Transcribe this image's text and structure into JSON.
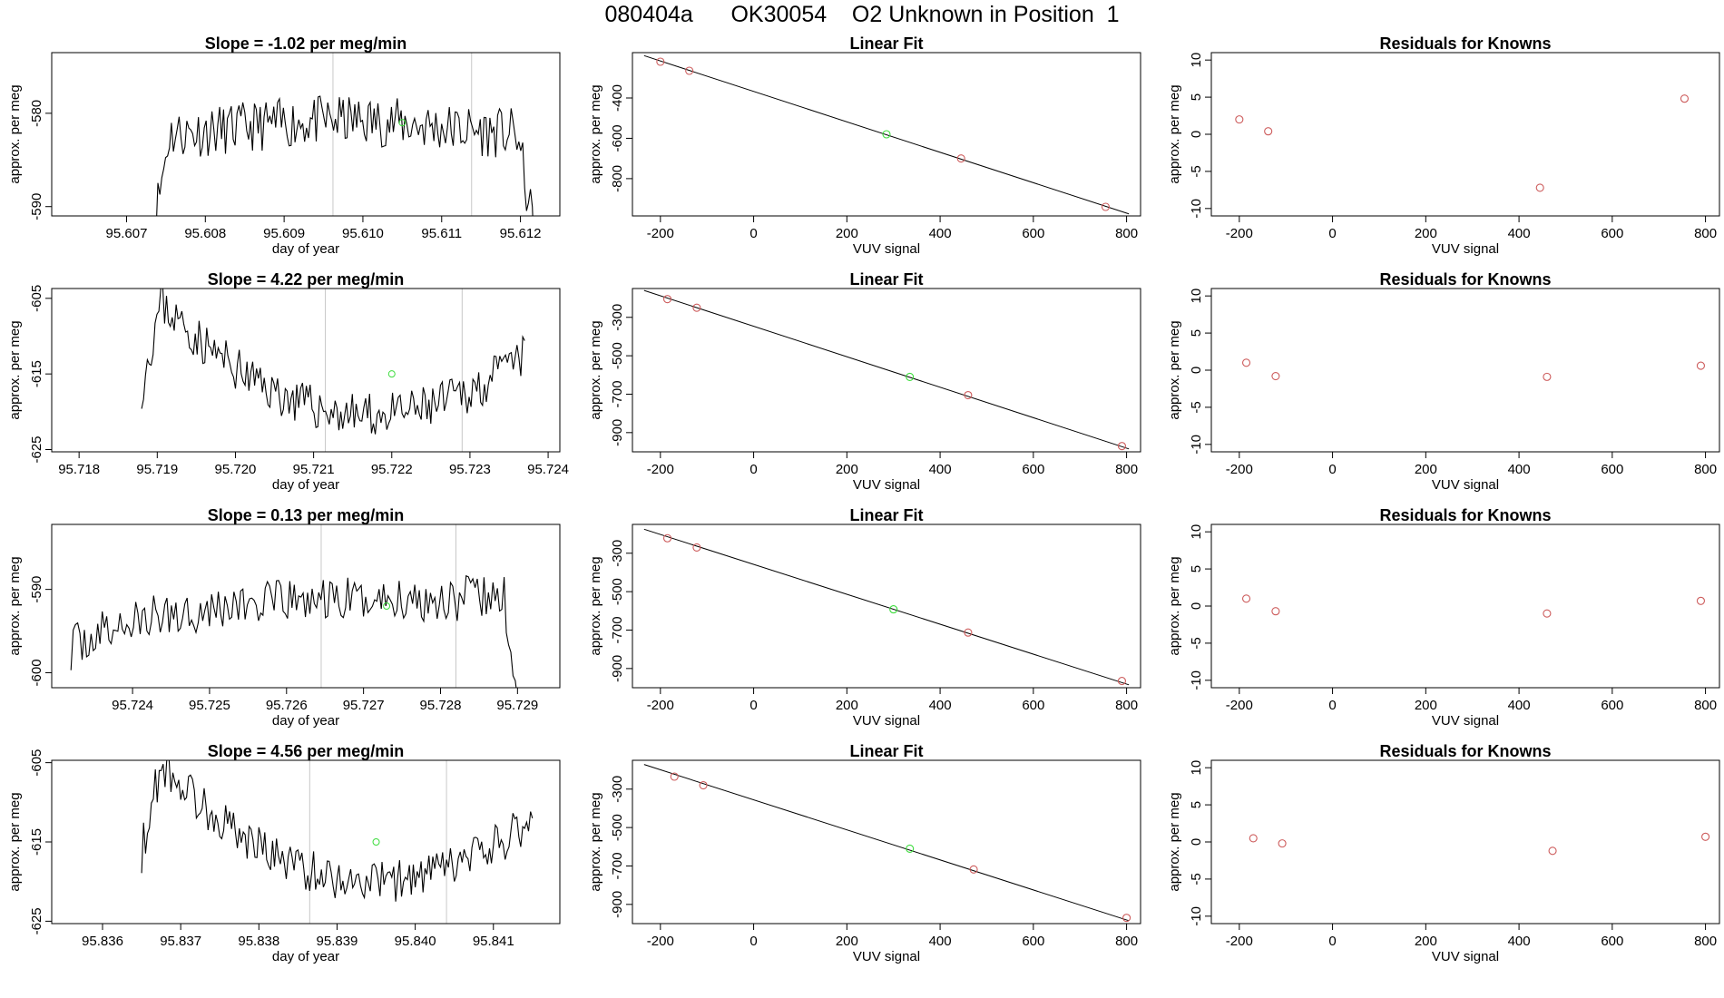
{
  "page": {
    "title": "080404a      OK30054    O2 Unknown in Position  1"
  },
  "colors": {
    "known": "#cd5c5c",
    "unknown": "#3cdc3c",
    "line": "#000000",
    "vline": "#c8c8c8",
    "frame": "#000000"
  },
  "chart_data": [
    {
      "row": 0,
      "col": 0,
      "type": "line",
      "title": "Slope =  -1.02  per meg/min",
      "xlabel": "day of year",
      "ylabel": "approx. per meg",
      "xlim": [
        95.60605,
        95.6125
      ],
      "ylim": [
        -591.0,
        -573.5
      ],
      "xticks": [
        95.607,
        95.608,
        95.609,
        95.61,
        95.611,
        95.612
      ],
      "xtick_labels": [
        "95.607",
        "95.608",
        "95.609",
        "95.610",
        "95.611",
        "95.612"
      ],
      "yticks": [
        -590,
        -580
      ],
      "ytick_labels": [
        "-590",
        "-580"
      ],
      "vlines": [
        95.60962,
        95.61138
      ],
      "unknown_point": {
        "x": 95.6105,
        "y": -581.0
      },
      "trace": {
        "x0": 95.6073,
        "x1": 95.6122,
        "seed": 11,
        "shape": "plateau",
        "base": -581.5,
        "amp": 1.5,
        "edge_drop": 12
      }
    },
    {
      "row": 0,
      "col": 1,
      "type": "scatter",
      "title": "Linear Fit",
      "xlabel": "VUV signal",
      "ylabel": "approx. per meg",
      "xlim": [
        -260,
        830
      ],
      "ylim": [
        -985,
        -175
      ],
      "xticks": [
        -200,
        0,
        200,
        400,
        600,
        800
      ],
      "xtick_labels": [
        "-200",
        "0",
        "200",
        "400",
        "600",
        "800"
      ],
      "yticks": [
        -800,
        -600,
        -400
      ],
      "ytick_labels": [
        "-800",
        "-600",
        "-400"
      ],
      "fit_line": {
        "x": [
          -235,
          805
        ],
        "y": [
          -190,
          -975
        ]
      },
      "known": [
        {
          "x": -200,
          "y": -220
        },
        {
          "x": -138,
          "y": -265
        },
        {
          "x": 445,
          "y": -700
        },
        {
          "x": 755,
          "y": -940
        }
      ],
      "unknown": [
        {
          "x": 285,
          "y": -580
        }
      ]
    },
    {
      "row": 0,
      "col": 2,
      "type": "scatter",
      "title": "Residuals for Knowns",
      "xlabel": "VUV signal",
      "ylabel": "approx. per meg",
      "xlim": [
        -260,
        830
      ],
      "ylim": [
        -11,
        11
      ],
      "xticks": [
        -200,
        0,
        200,
        400,
        600,
        800
      ],
      "xtick_labels": [
        "-200",
        "0",
        "200",
        "400",
        "600",
        "800"
      ],
      "yticks": [
        -10,
        -5,
        0,
        5,
        10
      ],
      "ytick_labels": [
        "-10",
        "-5",
        "0",
        "5",
        "10"
      ],
      "known": [
        {
          "x": -200,
          "y": 2.0
        },
        {
          "x": -138,
          "y": 0.4
        },
        {
          "x": 445,
          "y": -7.2
        },
        {
          "x": 755,
          "y": 4.8
        }
      ]
    },
    {
      "row": 1,
      "col": 0,
      "type": "line",
      "title": "Slope =  4.22  per meg/min",
      "xlabel": "day of year",
      "ylabel": "approx. per meg",
      "xlim": [
        95.71765,
        95.72415
      ],
      "ylim": [
        -625.3,
        -603.7
      ],
      "xticks": [
        95.718,
        95.719,
        95.72,
        95.721,
        95.722,
        95.723,
        95.724
      ],
      "xtick_labels": [
        "95.718",
        "95.719",
        "95.720",
        "95.721",
        "95.722",
        "95.723",
        "95.724"
      ],
      "yticks": [
        -625,
        -615,
        -605
      ],
      "ytick_labels": [
        "-625",
        "-615",
        "-605"
      ],
      "vlines": [
        95.72115,
        95.7229
      ],
      "unknown_point": {
        "x": 95.722,
        "y": -615.0
      },
      "trace": {
        "x0": 95.7188,
        "x1": 95.7237,
        "seed": 23,
        "shape": "valley",
        "base": -617.5,
        "amp": 1.6,
        "edge_rise": 14
      }
    },
    {
      "row": 1,
      "col": 1,
      "type": "scatter",
      "title": "Linear Fit",
      "xlabel": "VUV signal",
      "ylabel": "approx. per meg",
      "xlim": [
        -260,
        830
      ],
      "ylim": [
        -1000,
        -150
      ],
      "xticks": [
        -200,
        0,
        200,
        400,
        600,
        800
      ],
      "xtick_labels": [
        "-200",
        "0",
        "200",
        "400",
        "600",
        "800"
      ],
      "yticks": [
        -900,
        -700,
        -500,
        -300
      ],
      "ytick_labels": [
        "-900",
        "-700",
        "-500",
        "-300"
      ],
      "fit_line": {
        "x": [
          -235,
          805
        ],
        "y": [
          -160,
          -985
        ]
      },
      "known": [
        {
          "x": -185,
          "y": -205
        },
        {
          "x": -122,
          "y": -250
        },
        {
          "x": 460,
          "y": -705
        },
        {
          "x": 790,
          "y": -970
        }
      ],
      "unknown": [
        {
          "x": 335,
          "y": -610
        }
      ]
    },
    {
      "row": 1,
      "col": 2,
      "type": "scatter",
      "title": "Residuals for Knowns",
      "xlabel": "VUV signal",
      "ylabel": "approx. per meg",
      "xlim": [
        -260,
        830
      ],
      "ylim": [
        -11,
        11
      ],
      "xticks": [
        -200,
        0,
        200,
        400,
        600,
        800
      ],
      "xtick_labels": [
        "-200",
        "0",
        "200",
        "400",
        "600",
        "800"
      ],
      "yticks": [
        -10,
        -5,
        0,
        5,
        10
      ],
      "ytick_labels": [
        "-10",
        "-5",
        "0",
        "5",
        "10"
      ],
      "known": [
        {
          "x": -185,
          "y": 1.0
        },
        {
          "x": -122,
          "y": -0.8
        },
        {
          "x": 460,
          "y": -0.9
        },
        {
          "x": 790,
          "y": 0.6
        }
      ]
    },
    {
      "row": 2,
      "col": 0,
      "type": "line",
      "title": "Slope =  0.13  per meg/min",
      "xlabel": "day of year",
      "ylabel": "approx. per meg",
      "xlim": [
        95.72295,
        95.72955
      ],
      "ylim": [
        -601.8,
        -582.2
      ],
      "xticks": [
        95.724,
        95.725,
        95.726,
        95.727,
        95.728,
        95.729
      ],
      "xtick_labels": [
        "95.724",
        "95.725",
        "95.726",
        "95.727",
        "95.728",
        "95.729"
      ],
      "yticks": [
        -600,
        -590
      ],
      "ytick_labels": [
        "-600",
        "-590"
      ],
      "vlines": [
        95.72645,
        95.7282
      ],
      "unknown_point": {
        "x": 95.7273,
        "y": -592.0
      },
      "trace": {
        "x0": 95.7232,
        "x1": 95.729,
        "seed": 37,
        "shape": "rise",
        "base": -592.5,
        "amp": 1.5,
        "edge_drop": 12
      }
    },
    {
      "row": 2,
      "col": 1,
      "type": "scatter",
      "title": "Linear Fit",
      "xlabel": "VUV signal",
      "ylabel": "approx. per meg",
      "xlim": [
        -260,
        830
      ],
      "ylim": [
        -1000,
        -150
      ],
      "xticks": [
        -200,
        0,
        200,
        400,
        600,
        800
      ],
      "xtick_labels": [
        "-200",
        "0",
        "200",
        "400",
        "600",
        "800"
      ],
      "yticks": [
        -900,
        -700,
        -500,
        -300
      ],
      "ytick_labels": [
        "-900",
        "-700",
        "-500",
        "-300"
      ],
      "fit_line": {
        "x": [
          -235,
          805
        ],
        "y": [
          -175,
          -985
        ]
      },
      "known": [
        {
          "x": -185,
          "y": -222
        },
        {
          "x": -122,
          "y": -270
        },
        {
          "x": 460,
          "y": -713
        },
        {
          "x": 790,
          "y": -965
        }
      ],
      "unknown": [
        {
          "x": 300,
          "y": -592
        }
      ]
    },
    {
      "row": 2,
      "col": 2,
      "type": "scatter",
      "title": "Residuals for Knowns",
      "xlabel": "VUV signal",
      "ylabel": "approx. per meg",
      "xlim": [
        -260,
        830
      ],
      "ylim": [
        -11,
        11
      ],
      "xticks": [
        -200,
        0,
        200,
        400,
        600,
        800
      ],
      "xtick_labels": [
        "-200",
        "0",
        "200",
        "400",
        "600",
        "800"
      ],
      "yticks": [
        -10,
        -5,
        0,
        5,
        10
      ],
      "ytick_labels": [
        "-10",
        "-5",
        "0",
        "5",
        "10"
      ],
      "known": [
        {
          "x": -185,
          "y": 1.0
        },
        {
          "x": -122,
          "y": -0.7
        },
        {
          "x": 460,
          "y": -1.0
        },
        {
          "x": 790,
          "y": 0.7
        }
      ]
    },
    {
      "row": 3,
      "col": 0,
      "type": "line",
      "title": "Slope =  4.56  per meg/min",
      "xlabel": "day of year",
      "ylabel": "approx. per meg",
      "xlim": [
        95.83535,
        95.84185
      ],
      "ylim": [
        -625.3,
        -604.7
      ],
      "xticks": [
        95.837,
        95.838,
        95.839,
        95.84,
        95.841
      ],
      "xtick_labels": [
        "95.837",
        "95.838",
        "95.839",
        "95.840",
        "95.841"
      ],
      "extra_xtick": {
        "x": 95.836,
        "label": "95.836"
      },
      "yticks": [
        -625,
        -615,
        -605
      ],
      "ytick_labels": [
        "-625",
        "-615",
        "-605"
      ],
      "vlines": [
        95.83865,
        95.8404
      ],
      "unknown_point": {
        "x": 95.8395,
        "y": -615.0
      },
      "trace": {
        "x0": 95.8365,
        "x1": 95.8415,
        "seed": 53,
        "shape": "valley",
        "base": -617.0,
        "amp": 1.5,
        "edge_rise": 14
      }
    },
    {
      "row": 3,
      "col": 1,
      "type": "scatter",
      "title": "Linear Fit",
      "xlabel": "VUV signal",
      "ylabel": "approx. per meg",
      "xlim": [
        -260,
        830
      ],
      "ylim": [
        -1000,
        -150
      ],
      "xticks": [
        -200,
        0,
        200,
        400,
        600,
        800
      ],
      "xtick_labels": [
        "-200",
        "0",
        "200",
        "400",
        "600",
        "800"
      ],
      "yticks": [
        -900,
        -700,
        -500,
        -300
      ],
      "ytick_labels": [
        "-900",
        "-700",
        "-500",
        "-300"
      ],
      "fit_line": {
        "x": [
          -235,
          805
        ],
        "y": [
          -172,
          -985
        ]
      },
      "known": [
        {
          "x": -170,
          "y": -235
        },
        {
          "x": -108,
          "y": -280
        },
        {
          "x": 472,
          "y": -718
        },
        {
          "x": 800,
          "y": -970
        }
      ],
      "unknown": [
        {
          "x": 335,
          "y": -610
        }
      ]
    },
    {
      "row": 3,
      "col": 2,
      "type": "scatter",
      "title": "Residuals for Knowns",
      "xlabel": "VUV signal",
      "ylabel": "approx. per meg",
      "xlim": [
        -260,
        830
      ],
      "ylim": [
        -11,
        11
      ],
      "xticks": [
        -200,
        0,
        200,
        400,
        600,
        800
      ],
      "xtick_labels": [
        "-200",
        "0",
        "200",
        "400",
        "600",
        "800"
      ],
      "yticks": [
        -10,
        -5,
        0,
        5,
        10
      ],
      "ytick_labels": [
        "-10",
        "-5",
        "0",
        "5",
        "10"
      ],
      "known": [
        {
          "x": -170,
          "y": 0.5
        },
        {
          "x": -108,
          "y": -0.2
        },
        {
          "x": 472,
          "y": -1.2
        },
        {
          "x": 800,
          "y": 0.7
        }
      ]
    }
  ]
}
